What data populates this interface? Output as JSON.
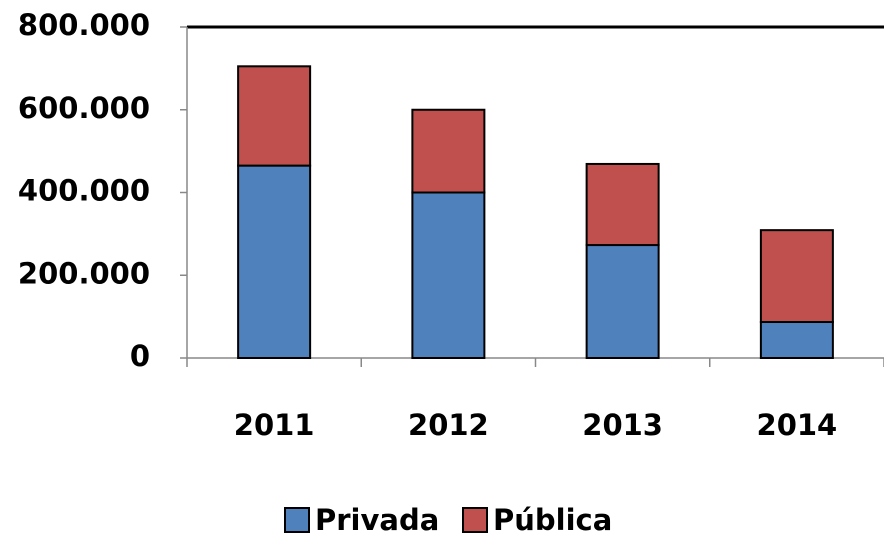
{
  "chart_data": {
    "type": "stacked_bar",
    "categories": [
      "2011",
      "2012",
      "2013",
      "2014"
    ],
    "series": [
      {
        "name": "Privada",
        "color": "#4f81bd",
        "values": [
          465000,
          400000,
          273000,
          87000
        ]
      },
      {
        "name": "Pública",
        "color": "#c0504d",
        "values": [
          240000,
          200000,
          196000,
          222000
        ]
      }
    ],
    "ylim": [
      0,
      800000
    ],
    "yticks": [
      0,
      {
        "value": 200000,
        "label": "200.000"
      },
      {
        "value": 400000,
        "label": "400.000"
      },
      {
        "value": 600000,
        "label": "600.000"
      },
      {
        "value": 800000,
        "label": "800.000"
      }
    ],
    "legend": "bottom"
  }
}
